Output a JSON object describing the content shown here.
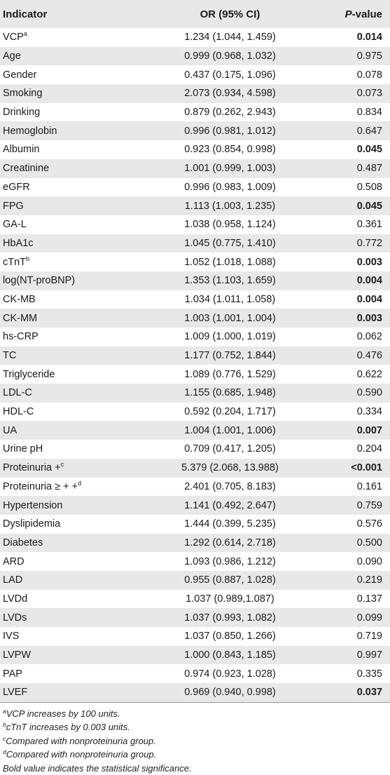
{
  "header": {
    "indicator": "Indicator",
    "or": "OR (95% CI)",
    "p_italic": "P",
    "p_rest": "-value"
  },
  "rows": [
    {
      "indicator": "VCP",
      "sup": "a",
      "or": "1.234 (1.044, 1.459)",
      "p": "0.014",
      "bold": true
    },
    {
      "indicator": "Age",
      "sup": "",
      "or": "0.999 (0.968, 1.032)",
      "p": "0.975",
      "bold": false
    },
    {
      "indicator": "Gender",
      "sup": "",
      "or": "0.437 (0.175, 1.096)",
      "p": "0.078",
      "bold": false
    },
    {
      "indicator": "Smoking",
      "sup": "",
      "or": "2.073 (0.934, 4.598)",
      "p": "0.073",
      "bold": false
    },
    {
      "indicator": "Drinking",
      "sup": "",
      "or": "0.879 (0.262, 2.943)",
      "p": "0.834",
      "bold": false
    },
    {
      "indicator": "Hemoglobin",
      "sup": "",
      "or": "0.996 (0.981, 1.012)",
      "p": "0.647",
      "bold": false
    },
    {
      "indicator": "Albumin",
      "sup": "",
      "or": "0.923 (0.854, 0.998)",
      "p": "0.045",
      "bold": true
    },
    {
      "indicator": "Creatinine",
      "sup": "",
      "or": "1.001 (0.999, 1.003)",
      "p": "0.487",
      "bold": false
    },
    {
      "indicator": "eGFR",
      "sup": "",
      "or": "0.996 (0.983, 1.009)",
      "p": "0.508",
      "bold": false
    },
    {
      "indicator": "FPG",
      "sup": "",
      "or": "1.113 (1.003, 1.235)",
      "p": "0.045",
      "bold": true
    },
    {
      "indicator": "GA-L",
      "sup": "",
      "or": "1.038 (0.958, 1.124)",
      "p": "0.361",
      "bold": false
    },
    {
      "indicator": "HbA1c",
      "sup": "",
      "or": "1.045 (0.775, 1.410)",
      "p": "0.772",
      "bold": false
    },
    {
      "indicator": "cTnT",
      "sup": "b",
      "or": "1.052 (1.018, 1.088)",
      "p": "0.003",
      "bold": true
    },
    {
      "indicator": "log(NT-proBNP)",
      "sup": "",
      "or": "1.353 (1.103, 1.659)",
      "p": "0.004",
      "bold": true
    },
    {
      "indicator": "CK-MB",
      "sup": "",
      "or": "1.034 (1.011, 1.058)",
      "p": "0.004",
      "bold": true
    },
    {
      "indicator": "CK-MM",
      "sup": "",
      "or": "1.003 (1.001, 1.004)",
      "p": "0.003",
      "bold": true
    },
    {
      "indicator": "hs-CRP",
      "sup": "",
      "or": "1.009 (1.000, 1.019)",
      "p": "0.062",
      "bold": false
    },
    {
      "indicator": "TC",
      "sup": "",
      "or": "1.177 (0.752, 1.844)",
      "p": "0.476",
      "bold": false
    },
    {
      "indicator": "Triglyceride",
      "sup": "",
      "or": "1.089 (0.776, 1.529)",
      "p": "0.622",
      "bold": false
    },
    {
      "indicator": "LDL-C",
      "sup": "",
      "or": "1.155 (0.685, 1.948)",
      "p": "0.590",
      "bold": false
    },
    {
      "indicator": "HDL-C",
      "sup": "",
      "or": "0.592 (0.204, 1.717)",
      "p": "0.334",
      "bold": false
    },
    {
      "indicator": "UA",
      "sup": "",
      "or": "1.004 (1.001, 1.006)",
      "p": "0.007",
      "bold": true
    },
    {
      "indicator": "Urine pH",
      "sup": "",
      "or": "0.709 (0.417, 1.205)",
      "p": "0.204",
      "bold": false
    },
    {
      "indicator": "Proteinuria +",
      "sup": "c",
      "or": "5.379 (2.068, 13.988)",
      "p": "<0.001",
      "bold": true
    },
    {
      "indicator": "Proteinuria ≥ + +",
      "sup": "d",
      "or": "2.401 (0.705, 8.183)",
      "p": "0.161",
      "bold": false
    },
    {
      "indicator": "Hypertension",
      "sup": "",
      "or": "1.141 (0.492, 2.647)",
      "p": "0.759",
      "bold": false
    },
    {
      "indicator": "Dyslipidemia",
      "sup": "",
      "or": "1.444 (0.399, 5.235)",
      "p": "0.576",
      "bold": false
    },
    {
      "indicator": "Diabetes",
      "sup": "",
      "or": "1.292 (0.614, 2.718)",
      "p": "0.500",
      "bold": false
    },
    {
      "indicator": "ARD",
      "sup": "",
      "or": "1.093 (0.986, 1.212)",
      "p": "0.090",
      "bold": false
    },
    {
      "indicator": "LAD",
      "sup": "",
      "or": "0.955 (0.887, 1.028)",
      "p": "0.219",
      "bold": false
    },
    {
      "indicator": "LVDd",
      "sup": "",
      "or": "1.037 (0.989,1.087)",
      "p": "0.137",
      "bold": false
    },
    {
      "indicator": "LVDs",
      "sup": "",
      "or": "1.037 (0.993, 1.082)",
      "p": "0.099",
      "bold": false
    },
    {
      "indicator": "IVS",
      "sup": "",
      "or": "1.037 (0.850, 1.266)",
      "p": "0.719",
      "bold": false
    },
    {
      "indicator": "LVPW",
      "sup": "",
      "or": "1.000 (0.843, 1.185)",
      "p": "0.997",
      "bold": false
    },
    {
      "indicator": "PAP",
      "sup": "",
      "or": "0.974 (0.923, 1.028)",
      "p": "0.335",
      "bold": false
    },
    {
      "indicator": "LVEF",
      "sup": "",
      "or": "0.969 (0.940, 0.998)",
      "p": "0.037",
      "bold": true
    }
  ],
  "footnotes": [
    {
      "mark": "a",
      "text": "VCP increases by 100 units."
    },
    {
      "mark": "b",
      "text": "cTnT increases by 0.003 units."
    },
    {
      "mark": "c",
      "text": "Compared with nonproteinuria group."
    },
    {
      "mark": "d",
      "text": "Compared with nonproteinuria group."
    },
    {
      "mark": "",
      "text": "Bold value indicates the statistical significance."
    }
  ]
}
